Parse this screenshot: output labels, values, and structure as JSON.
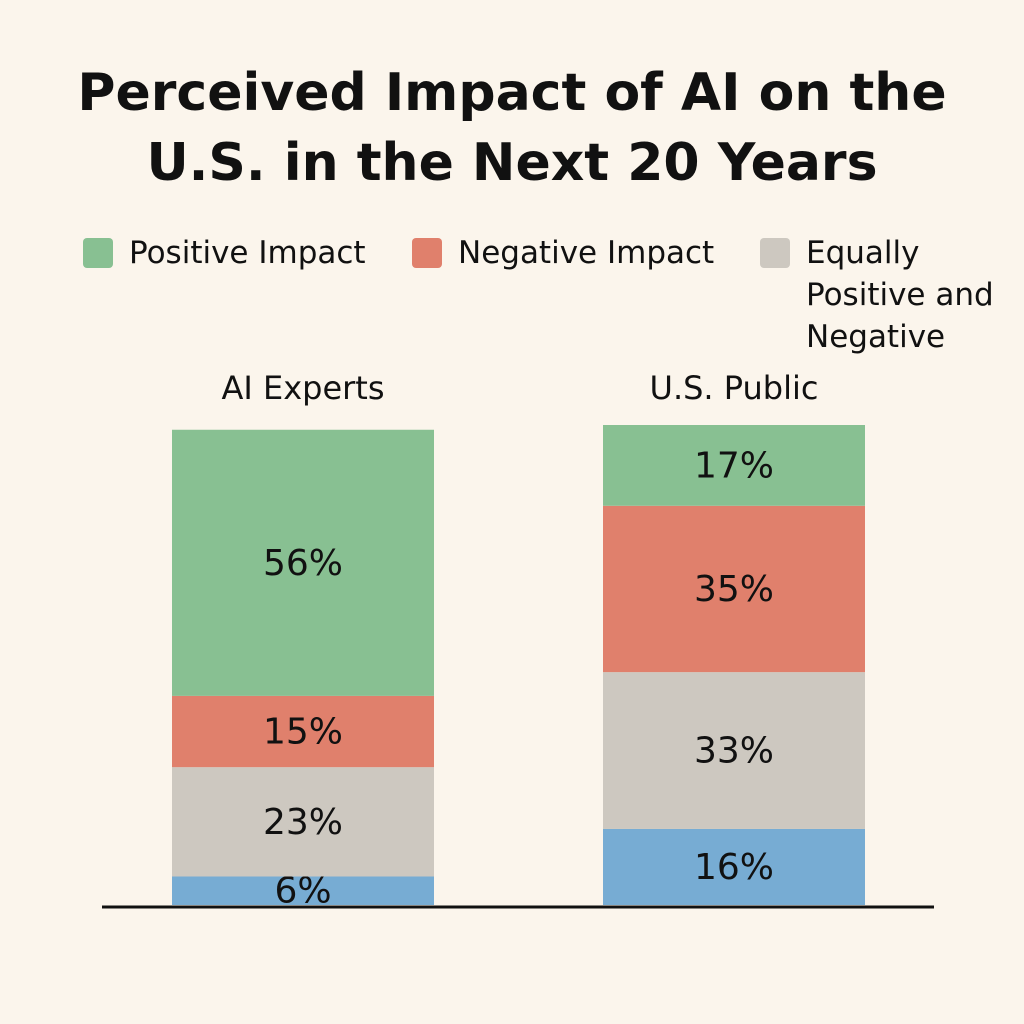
{
  "chart_data": {
    "type": "stacked-bar",
    "title": "Perceived Impact of AI on the U.S. in the Next 20 Years",
    "categories": [
      "AI Experts",
      "U.S. Public"
    ],
    "series": [
      {
        "name": "Positive Impact",
        "color": "#88c092",
        "values": [
          56,
          17
        ],
        "value_labels": [
          "56%",
          "17%"
        ]
      },
      {
        "name": "Negative Impact",
        "color": "#e0806c",
        "values": [
          15,
          35
        ],
        "value_labels": [
          "15%",
          "35%"
        ]
      },
      {
        "name": "Equally Positive and Negative",
        "color": "#cdc8c0",
        "values": [
          23,
          33
        ],
        "value_labels": [
          "23%",
          "33%"
        ]
      },
      {
        "color": "#77acd3",
        "values": [
          6,
          16
        ],
        "value_labels": [
          "6%",
          "16%"
        ]
      }
    ]
  }
}
